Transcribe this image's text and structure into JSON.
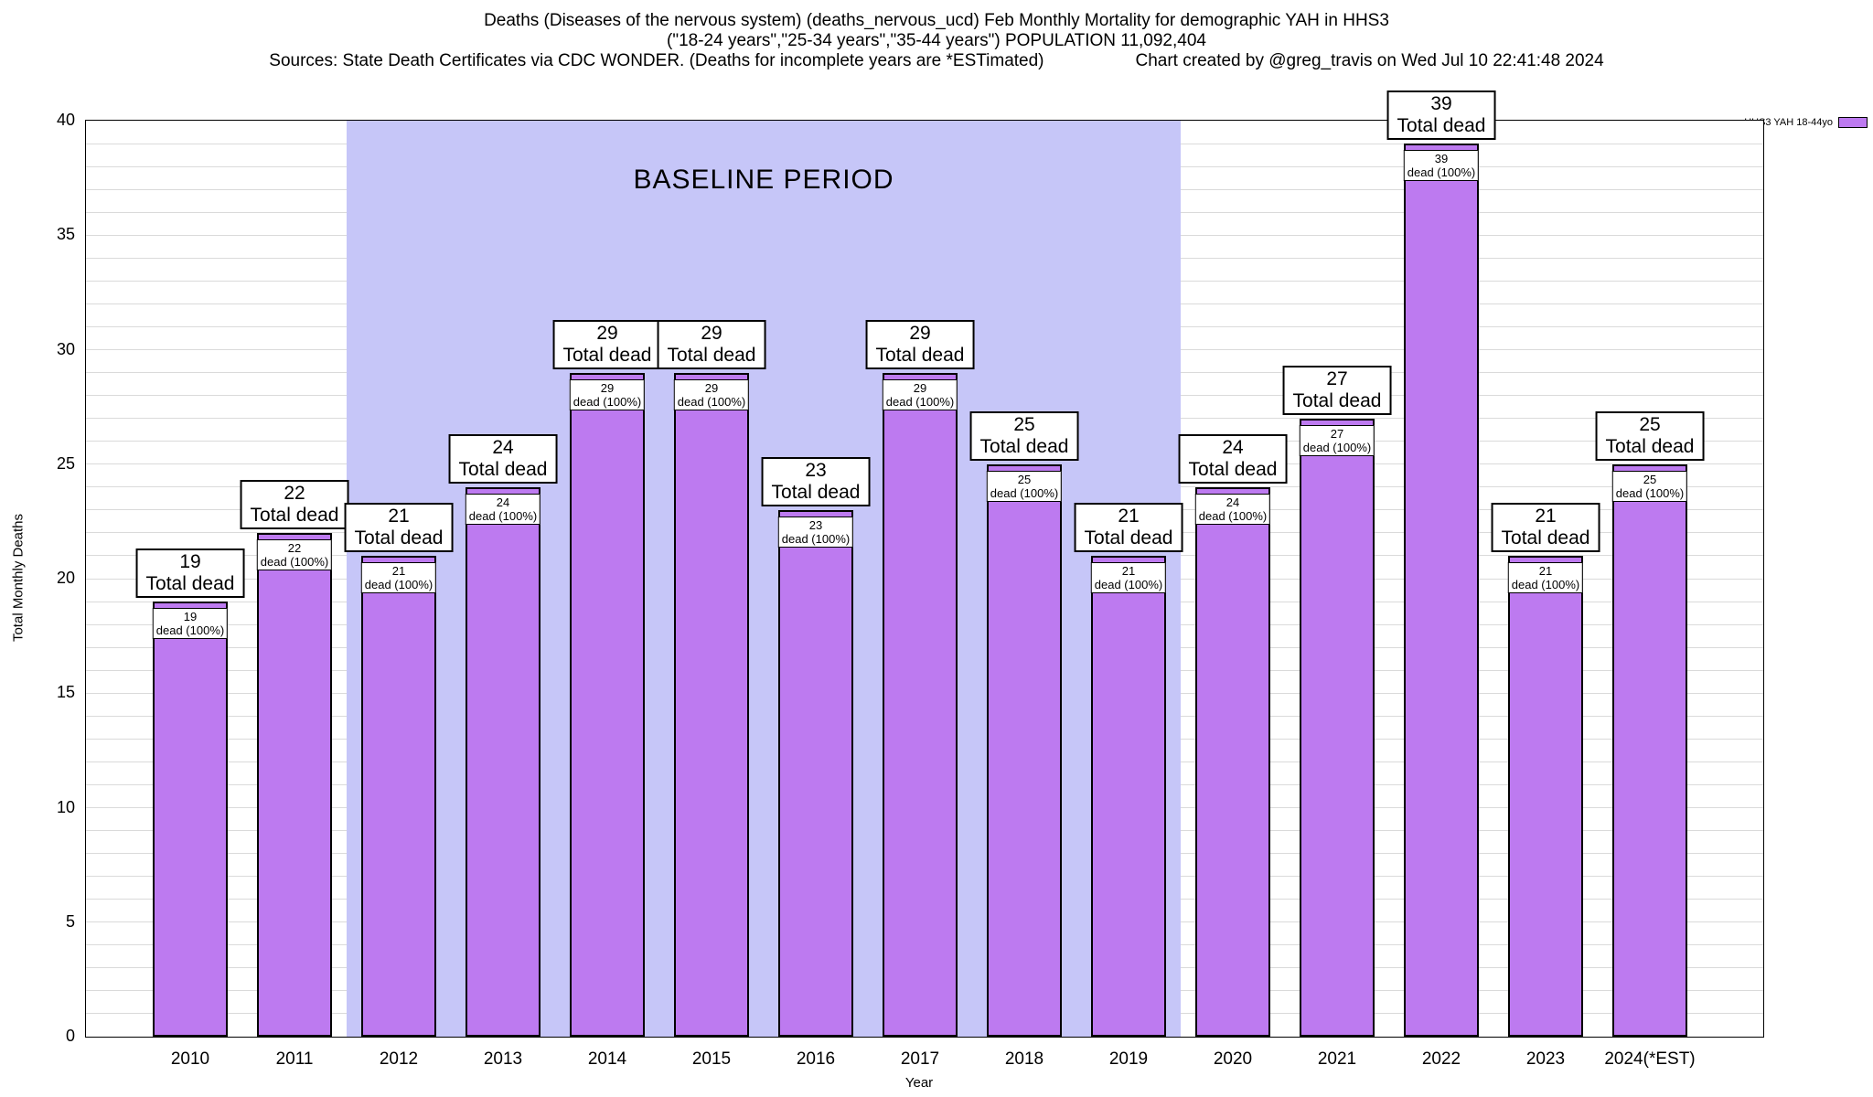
{
  "chart_data": {
    "type": "bar",
    "title": "Deaths (Diseases of the nervous system) (deaths_nervous_ucd) Feb Monthly Mortality for demographic YAH in HHS3",
    "subtitle": "(\"18-24 years\",\"25-34 years\",\"35-44 years\") POPULATION 11,092,404",
    "source_note": "Sources: State Death Certificates via CDC WONDER. (Deaths for incomplete years are *ESTimated)",
    "credit": "Chart created by @greg_travis on Wed Jul 10 22:41:48 2024",
    "xlabel": "Year",
    "ylabel": "Total Monthly Deaths",
    "ylim": [
      0,
      40
    ],
    "ytick_step": 5,
    "grid_step": 1,
    "grid": true,
    "legend_position": "top-right",
    "series_name": "HHS3 YAH 18-44yo",
    "categories": [
      "2010",
      "2011",
      "2012",
      "2013",
      "2014",
      "2015",
      "2016",
      "2017",
      "2018",
      "2019",
      "2020",
      "2021",
      "2022",
      "2023",
      "2024(*EST)"
    ],
    "values": [
      19,
      22,
      21,
      24,
      29,
      29,
      23,
      29,
      25,
      21,
      24,
      27,
      39,
      21,
      25
    ],
    "bar_value_label_suffix": "Total dead",
    "bar_inner_label_suffix": "dead (100%)",
    "baseline_region": {
      "label": "BASELINE PERIOD",
      "start": "2012",
      "end": "2019"
    },
    "colors": {
      "bar": "#bd7af0",
      "bar_border": "#000000",
      "baseline_bg": "#c6c6f8",
      "gridline": "#dadada"
    }
  }
}
